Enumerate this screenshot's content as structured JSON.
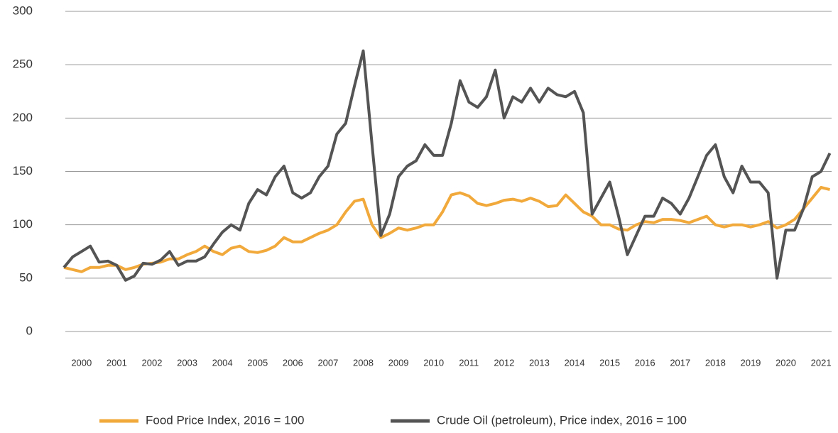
{
  "chart_data": {
    "type": "line",
    "x": [
      2000,
      2000.25,
      2000.5,
      2000.75,
      2001,
      2001.25,
      2001.5,
      2001.75,
      2002,
      2002.25,
      2002.5,
      2002.75,
      2003,
      2003.25,
      2003.5,
      2003.75,
      2004,
      2004.25,
      2004.5,
      2004.75,
      2005,
      2005.25,
      2005.5,
      2005.75,
      2006,
      2006.25,
      2006.5,
      2006.75,
      2007,
      2007.25,
      2007.5,
      2007.75,
      2008,
      2008.25,
      2008.5,
      2008.75,
      2009,
      2009.25,
      2009.5,
      2009.75,
      2010,
      2010.25,
      2010.5,
      2010.75,
      2011,
      2011.25,
      2011.5,
      2011.75,
      2012,
      2012.25,
      2012.5,
      2012.75,
      2013,
      2013.25,
      2013.5,
      2013.75,
      2014,
      2014.25,
      2014.5,
      2014.75,
      2015,
      2015.25,
      2015.5,
      2015.75,
      2016,
      2016.25,
      2016.5,
      2016.75,
      2017,
      2017.25,
      2017.5,
      2017.75,
      2018,
      2018.25,
      2018.5,
      2018.75,
      2019,
      2019.25,
      2019.5,
      2019.75,
      2020,
      2020.25,
      2020.5,
      2020.75,
      2021,
      2021.25,
      2021.5,
      2021.75
    ],
    "series": [
      {
        "name": "Food Price Index, 2016 = 100",
        "color": "#f2a93b",
        "values": [
          60,
          58,
          56,
          60,
          60,
          62,
          62,
          58,
          60,
          63,
          64,
          65,
          68,
          68,
          72,
          75,
          80,
          75,
          72,
          78,
          80,
          75,
          74,
          76,
          80,
          88,
          84,
          84,
          88,
          92,
          95,
          100,
          112,
          122,
          124,
          100,
          88,
          92,
          97,
          95,
          97,
          100,
          100,
          112,
          128,
          130,
          127,
          120,
          118,
          120,
          123,
          124,
          122,
          125,
          122,
          117,
          118,
          128,
          120,
          112,
          108,
          100,
          100,
          96,
          95,
          100,
          103,
          102,
          105,
          105,
          104,
          102,
          105,
          108,
          100,
          98,
          100,
          100,
          98,
          100,
          103,
          97,
          100,
          105,
          115,
          125,
          135,
          133
        ]
      },
      {
        "name": "Crude Oil (petroleum), Price index, 2016 = 100",
        "color": "#545454",
        "values": [
          60,
          70,
          75,
          80,
          65,
          66,
          62,
          48,
          52,
          64,
          63,
          67,
          75,
          62,
          66,
          66,
          70,
          82,
          93,
          100,
          95,
          120,
          133,
          128,
          145,
          155,
          130,
          125,
          130,
          145,
          155,
          185,
          195,
          230,
          263,
          175,
          90,
          110,
          145,
          155,
          160,
          175,
          165,
          165,
          195,
          235,
          215,
          210,
          220,
          245,
          200,
          220,
          215,
          228,
          215,
          228,
          222,
          220,
          225,
          205,
          110,
          125,
          140,
          108,
          72,
          90,
          108,
          108,
          125,
          120,
          110,
          125,
          145,
          165,
          175,
          145,
          130,
          155,
          140,
          140,
          130,
          50,
          95,
          95,
          115,
          145,
          150,
          167
        ]
      }
    ],
    "xlim": [
      2000,
      2021.8
    ],
    "xticks": [
      {
        "value": 2000.5,
        "label": "2000"
      },
      {
        "value": 2001.5,
        "label": "2001"
      },
      {
        "value": 2002.5,
        "label": "2002"
      },
      {
        "value": 2003.5,
        "label": "2003"
      },
      {
        "value": 2004.5,
        "label": "2004"
      },
      {
        "value": 2005.5,
        "label": "2005"
      },
      {
        "value": 2006.5,
        "label": "2006"
      },
      {
        "value": 2007.5,
        "label": "2007"
      },
      {
        "value": 2008.5,
        "label": "2008"
      },
      {
        "value": 2009.5,
        "label": "2009"
      },
      {
        "value": 2010.5,
        "label": "2010"
      },
      {
        "value": 2011.5,
        "label": "2011"
      },
      {
        "value": 2012.5,
        "label": "2012"
      },
      {
        "value": 2013.5,
        "label": "2013"
      },
      {
        "value": 2014.5,
        "label": "2014"
      },
      {
        "value": 2015.5,
        "label": "2015"
      },
      {
        "value": 2016.5,
        "label": "2016"
      },
      {
        "value": 2017.5,
        "label": "2017"
      },
      {
        "value": 2018.5,
        "label": "2018"
      },
      {
        "value": 2019.5,
        "label": "2019"
      },
      {
        "value": 2020.5,
        "label": "2020"
      },
      {
        "value": 2021.5,
        "label": "2021"
      }
    ],
    "ylim": [
      0,
      300
    ],
    "yticks": [
      0,
      50,
      100,
      150,
      200,
      250,
      300
    ],
    "grid": true,
    "legend": "bottom"
  }
}
